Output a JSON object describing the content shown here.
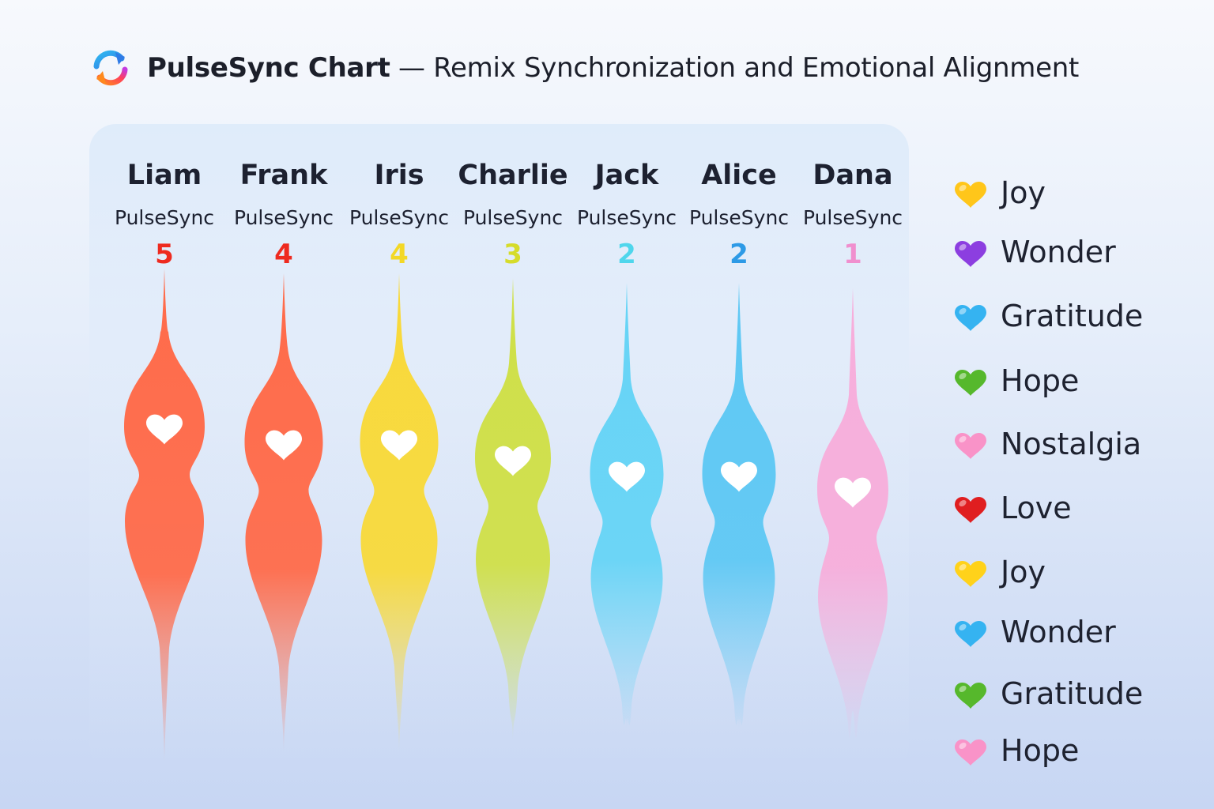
{
  "header": {
    "title_strong": "PulseSync Chart",
    "title_rest": " — Remix Synchronization and Emotional Alignment",
    "logo_icon": "sync-arrows-icon"
  },
  "chart_data": {
    "type": "violin",
    "title": "PulseSync Chart — Remix Synchronization and Emotional Alignment",
    "categories": [
      "Liam",
      "Frank",
      "Iris",
      "Charlie",
      "Jack",
      "Alice",
      "Dana"
    ],
    "sublabel": "PulseSync",
    "values": [
      5,
      4,
      4,
      3,
      2,
      2,
      1
    ],
    "colors": [
      "#ff6b4a",
      "#ff6b4a",
      "#f8d93a",
      "#cfe048",
      "#66d4f6",
      "#5ec8f4",
      "#f7aedb"
    ],
    "value_colors": [
      "#ee2a1f",
      "#ee2a1f",
      "#f3d826",
      "#d6dc2a",
      "#4fd6ec",
      "#2d9ae6",
      "#f08fce"
    ]
  },
  "legend": [
    {
      "label": "Joy",
      "color": "#ffc61a"
    },
    {
      "label": "Wonder",
      "color": "#8c3ee0"
    },
    {
      "label": "Gratitude",
      "color": "#35b3f1"
    },
    {
      "label": "Hope",
      "color": "#56b82c"
    },
    {
      "label": "Nostalgia",
      "color": "#f993c8"
    },
    {
      "label": "Love",
      "color": "#e01e20"
    },
    {
      "label": "Joy",
      "color": "#ffd21a"
    },
    {
      "label": "Wonder",
      "color": "#35b3f1"
    },
    {
      "label": "Gratitude",
      "color": "#56b82c"
    },
    {
      "label": "Hope",
      "color": "#f993c8"
    }
  ]
}
